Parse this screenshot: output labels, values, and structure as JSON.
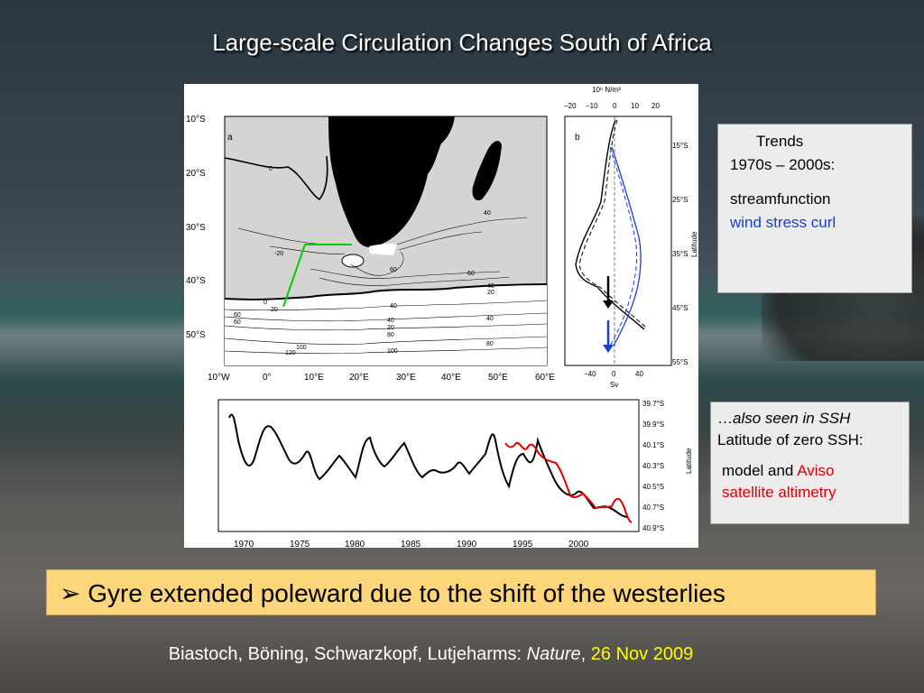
{
  "slide": {
    "title": "Large-scale Circulation Changes South of Africa"
  },
  "panel_a": {
    "label": "a",
    "lat_ticks": [
      "10°S",
      "20°S",
      "30°S",
      "40°S",
      "50°S"
    ],
    "lon_ticks": [
      "10°W",
      "0°",
      "10°E",
      "20°E",
      "30°E",
      "40°E",
      "50°E",
      "60°E"
    ],
    "contour_labels": [
      "0",
      "0",
      "40",
      "-20",
      "60",
      "60",
      "40",
      "20",
      "0",
      "20",
      "60",
      "40",
      "20",
      "40",
      "80",
      "80",
      "100",
      "120",
      "100",
      "40",
      "60"
    ]
  },
  "panel_b": {
    "label": "b",
    "top_unit": "10⁶ N/m³",
    "top_ticks": [
      "−20",
      "−10",
      "0",
      "10",
      "20"
    ],
    "bottom_ticks": [
      "−40",
      "0",
      "40"
    ],
    "bottom_unit": "Sv",
    "lat_ticks": [
      "15°S",
      "25°S",
      "35°S",
      "45°S",
      "55°S"
    ],
    "axis_label": "Latitude"
  },
  "panel_c": {
    "lat_ticks": [
      "39.7°S",
      "39.9°S",
      "40.1°S",
      "40.3°S",
      "40.5°S",
      "40.7°S",
      "40.9°S"
    ],
    "year_ticks": [
      "1970",
      "1975",
      "1980",
      "1985",
      "1990",
      "1995",
      "2000"
    ],
    "axis_label": "Latitude"
  },
  "trends_box": {
    "line1": "Trends",
    "line2": "1970s – 2000s:",
    "line3": "streamfunction",
    "line4": "wind stress curl"
  },
  "ssh_box": {
    "line1_prefix": "…",
    "line1_italic": "also seen in SSH",
    "line2": "Latitude of zero SSH:",
    "line3_a": "model and ",
    "line3_b": "Aviso",
    "line4": "satellite altimetry"
  },
  "banner": {
    "bullet": "➢",
    "text": "Gyre extended poleward due to the shift of the westerlies"
  },
  "citation": {
    "authors": "Biastoch, Böning, Schwarzkopf, Lutjeharms: ",
    "journal": "Nature",
    "sep": ", ",
    "date": "26 Nov 2009"
  },
  "colors": {
    "title_text": "#ffffff",
    "banner_bg": "#fdd57a",
    "model_line": "#000000",
    "aviso_line": "#e00000",
    "wind_curl_line": "#1a3fd0",
    "green_box": "#00cc00"
  },
  "icons": {
    "bullet": "arrow-bullet-icon",
    "arrow_black": "down-arrow-icon",
    "arrow_blue": "down-arrow-icon"
  }
}
